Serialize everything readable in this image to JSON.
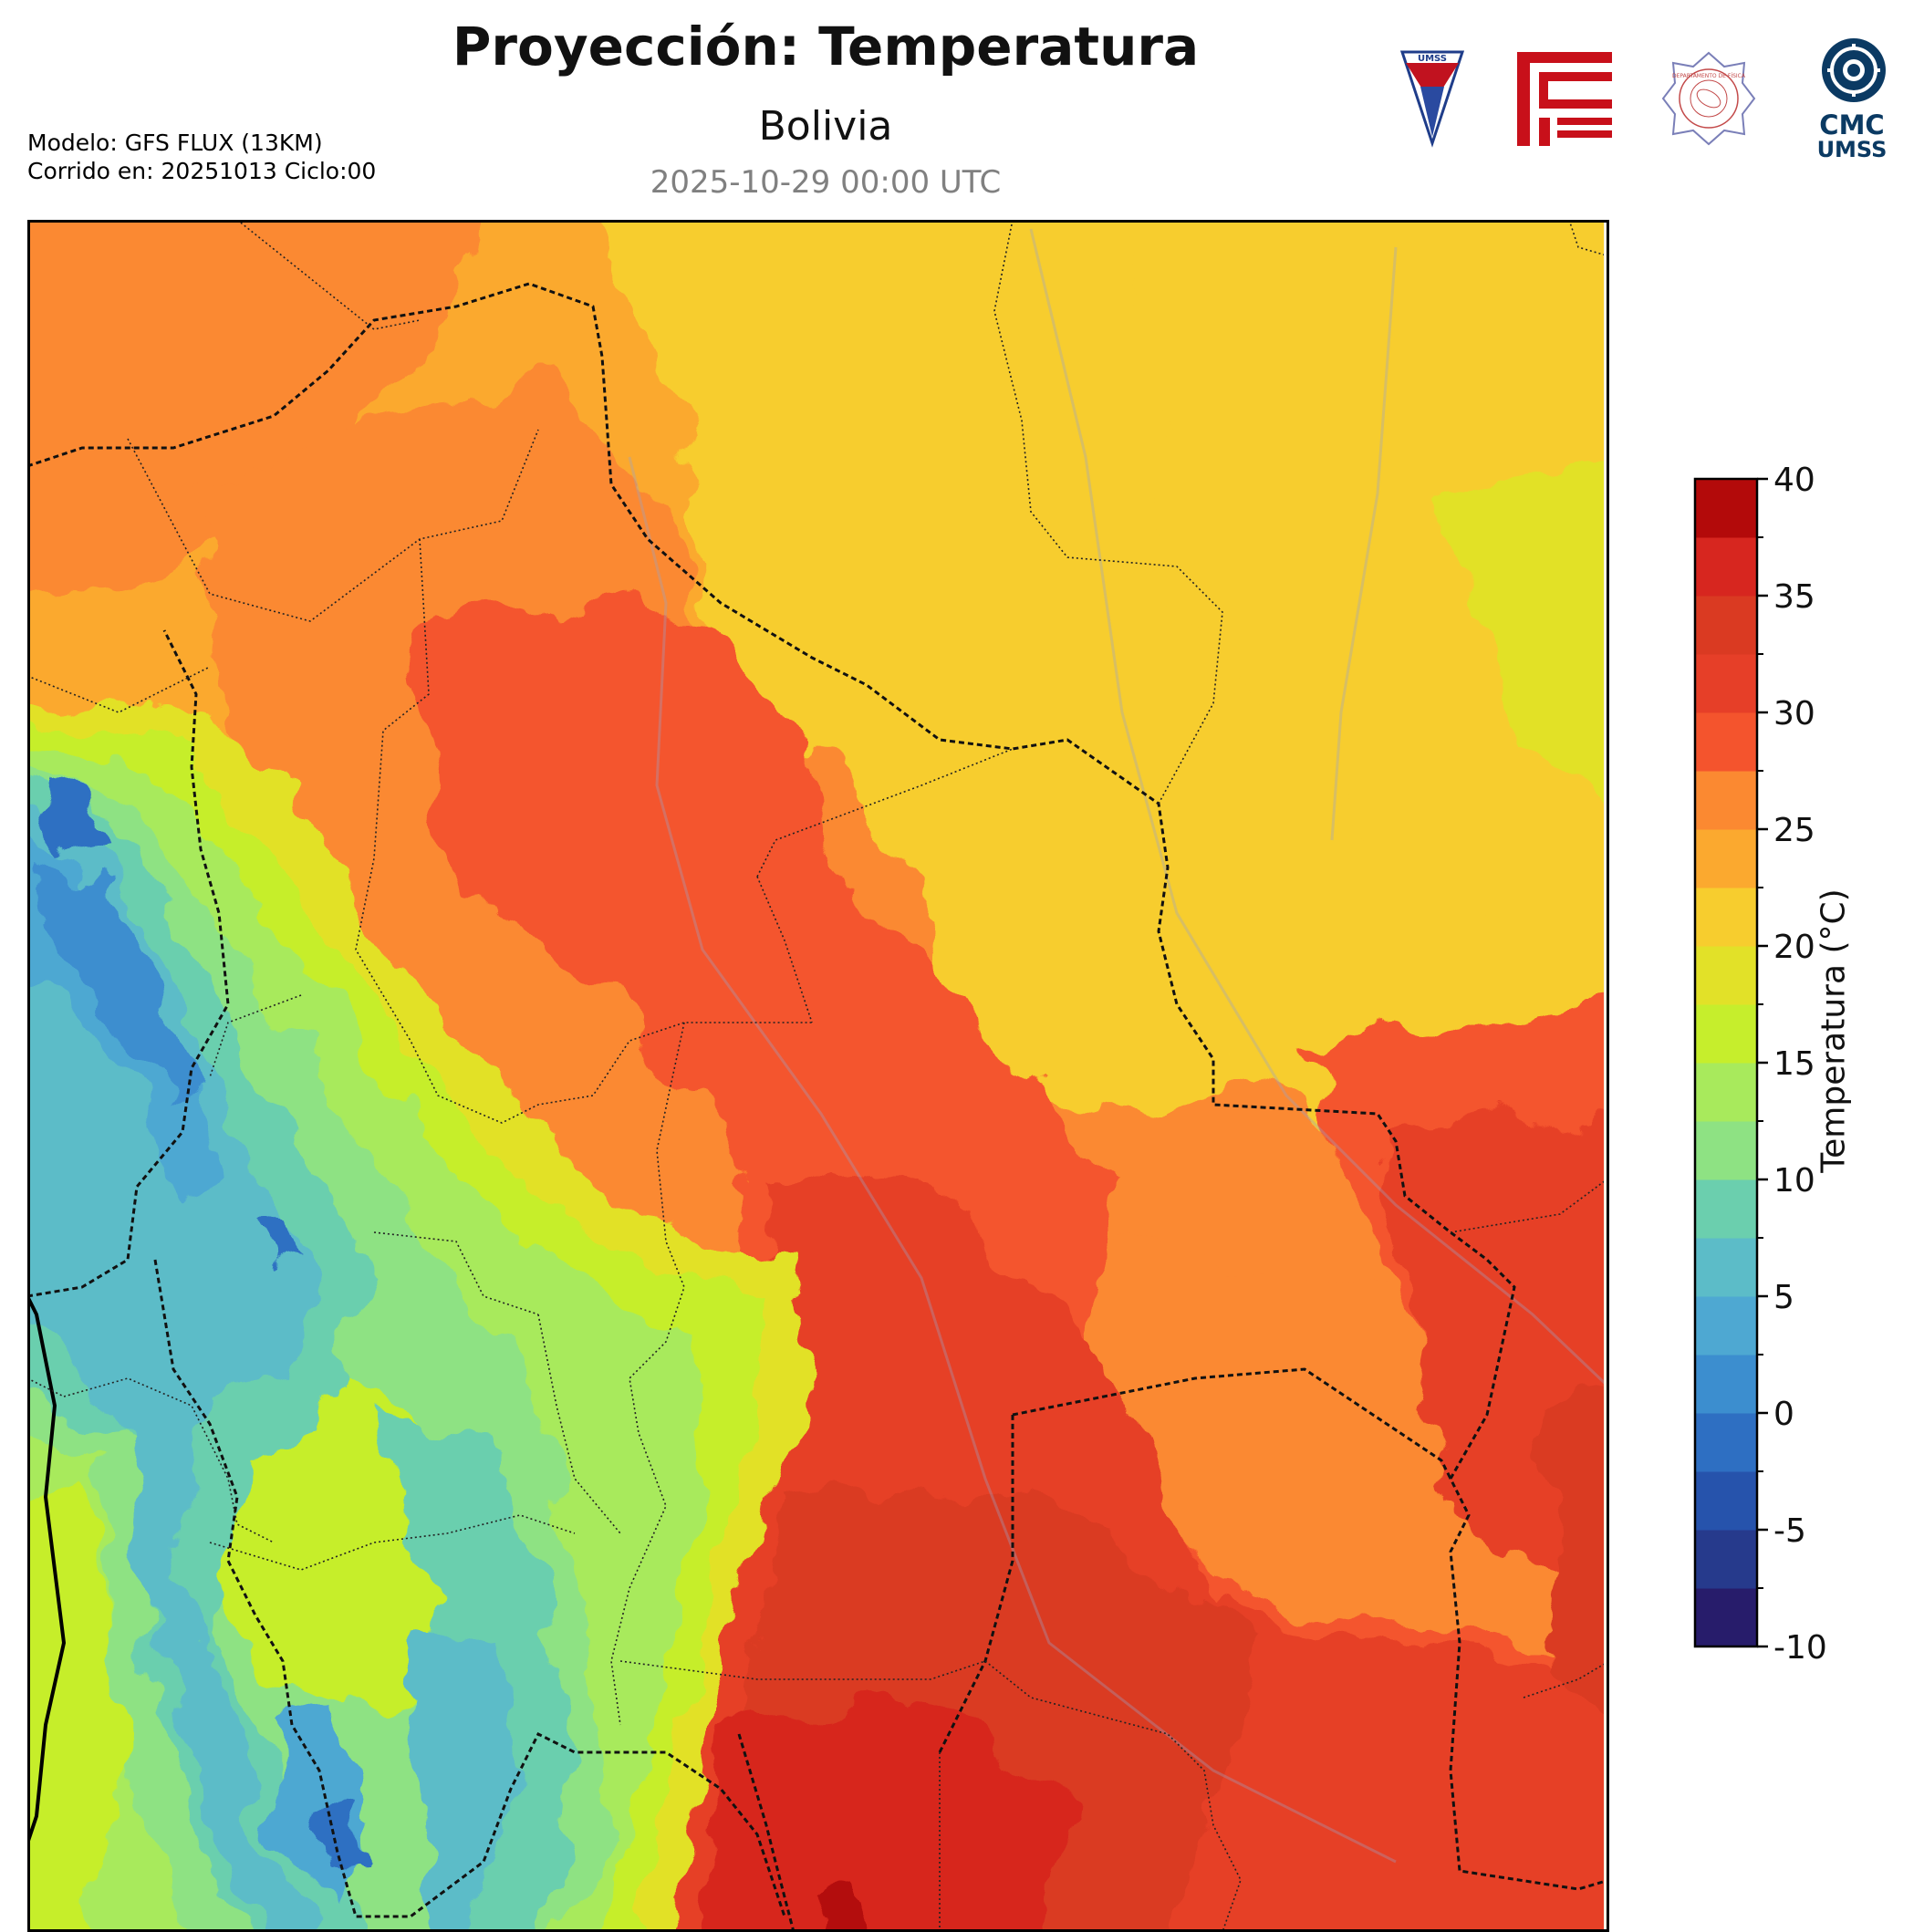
{
  "header": {
    "title": "Proyección: Temperatura",
    "subtitle": "Bolivia",
    "valid_time": "2025-10-29 00:00 UTC",
    "model_line": "Modelo: GFS FLUX (13KM)",
    "run_line": "Corrido en: 20251013 Ciclo:00"
  },
  "logos": {
    "umss_text": "UMSS",
    "fisica_text": "DEPARTAMENTO DE FÍSICA",
    "cmc_line1": "CMC",
    "cmc_line2": "UMSS"
  },
  "colorbar": {
    "label": "Temperatura (°C)",
    "min": -10,
    "max": 40,
    "step": 2.5,
    "tick_values": [
      -10,
      -5,
      0,
      5,
      10,
      15,
      20,
      25,
      30,
      35,
      40
    ],
    "tick_labels": [
      "-10",
      "-5",
      "0",
      "5",
      "10",
      "15",
      "20",
      "25",
      "30",
      "35",
      "40"
    ],
    "colors": [
      "#271c6b",
      "#263a8c",
      "#2653ac",
      "#2e6fc2",
      "#3c8ecf",
      "#4ea8d2",
      "#5cbcc8",
      "#6bcfae",
      "#8ee283",
      "#a8ea5c",
      "#c6ee2c",
      "#e2e128",
      "#f7cd2e",
      "#fba92f",
      "#fb8931",
      "#f4542d",
      "#e63f28",
      "#da3a22",
      "#d7261f",
      "#b30a0a"
    ]
  },
  "map": {
    "region": "Bolivia",
    "field": "temperature",
    "units": "°C"
  }
}
